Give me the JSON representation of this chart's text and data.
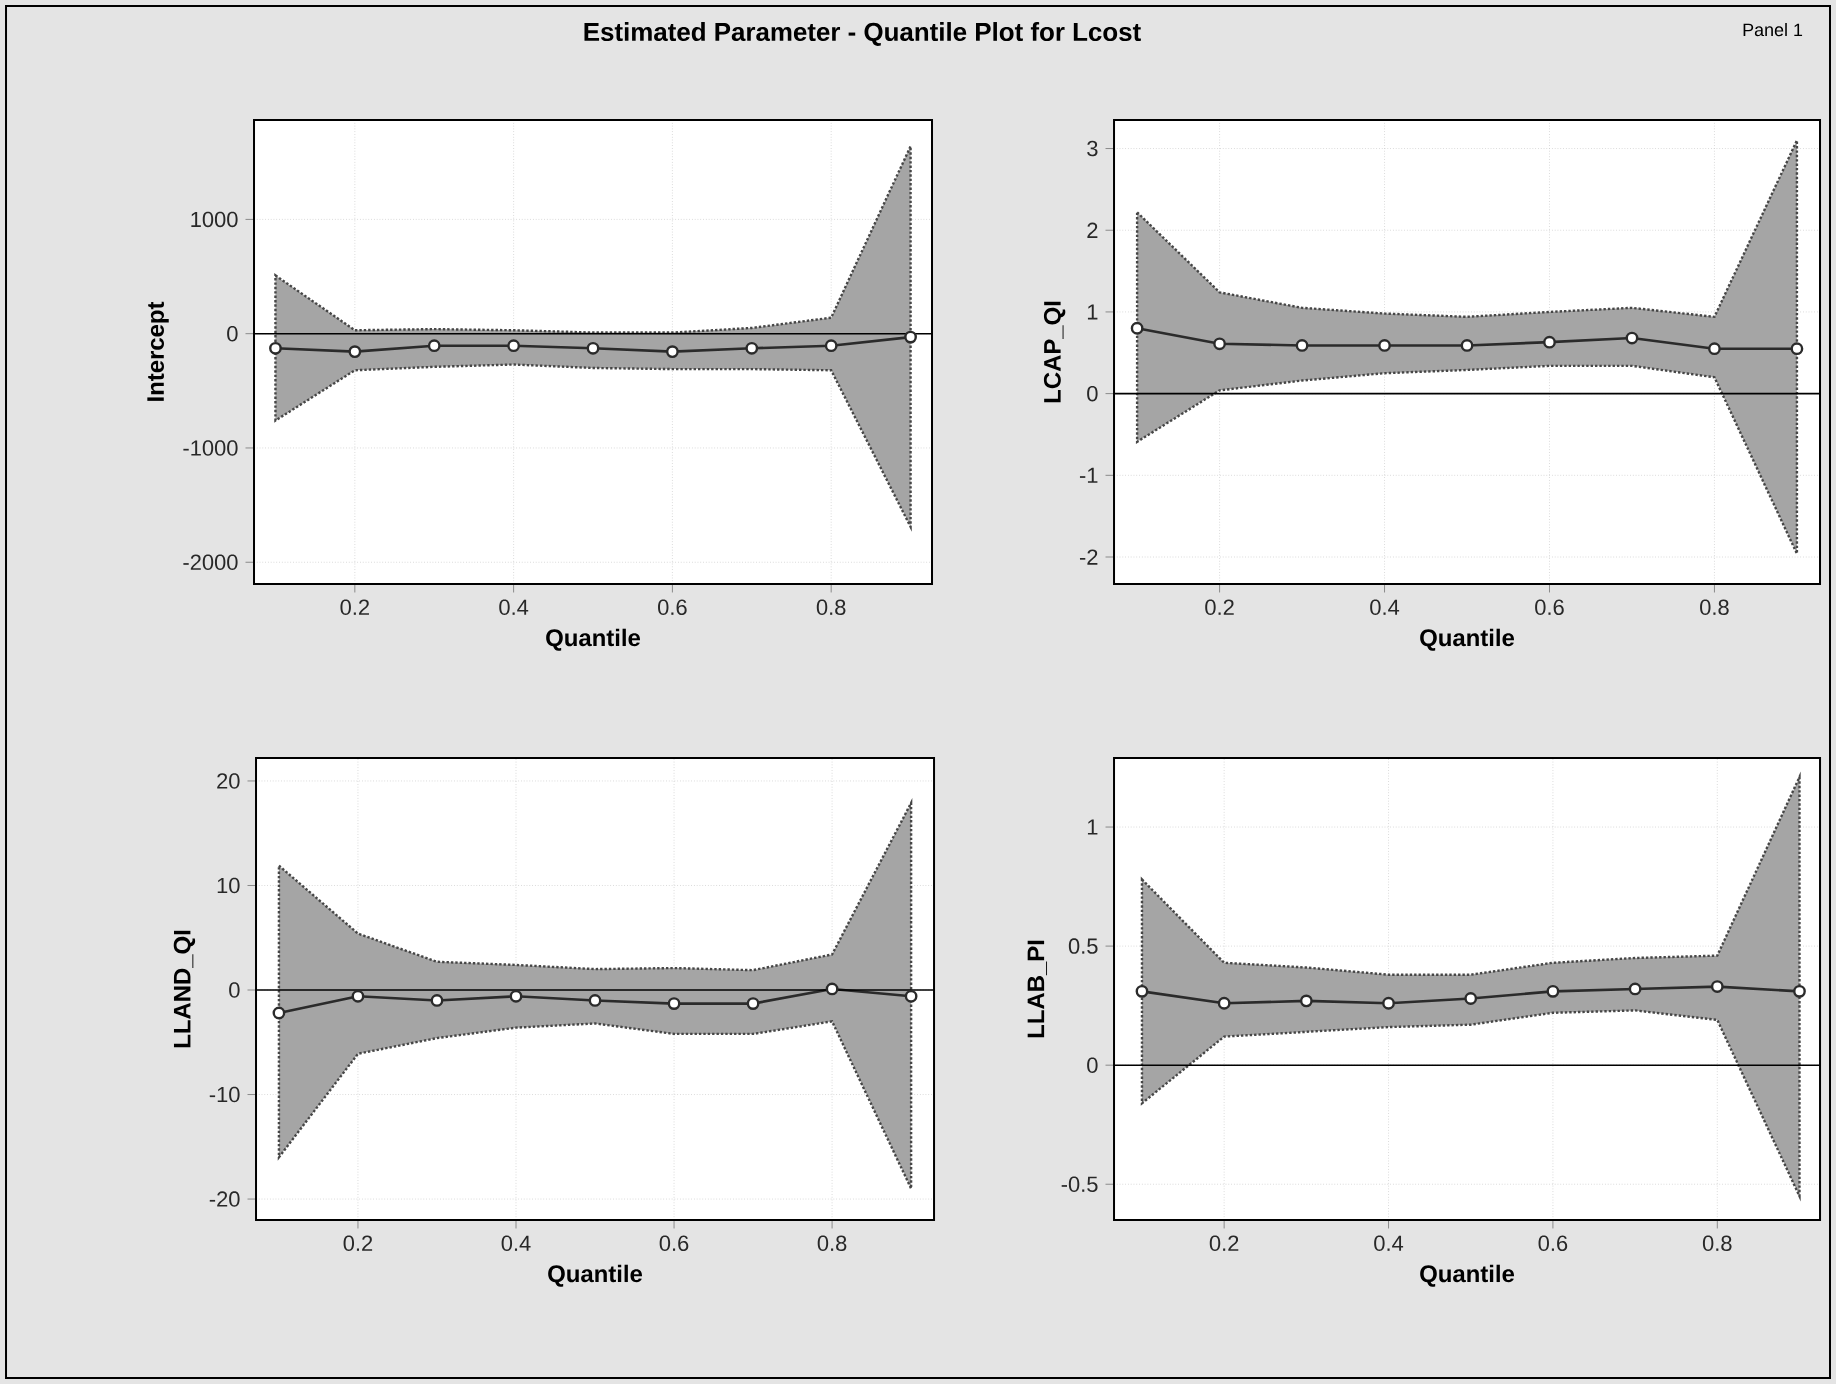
{
  "chart_data": [
    {
      "type": "line",
      "title": "Estimated Parameter - Quantile Plot for Lcost",
      "annotations": [
        "Panel 1"
      ],
      "xlabel": "Quantile",
      "ylabel": "Intercept",
      "xlim": [
        0.073,
        0.927
      ],
      "xticks": [
        0.2,
        0.4,
        0.6,
        0.8
      ],
      "ylim": [
        -2190,
        1870
      ],
      "yticks": [
        -2000,
        -1000,
        0,
        1000
      ],
      "grid": true,
      "marker": "circle",
      "ref_lines": [
        {
          "axis": "y",
          "value": 0
        }
      ],
      "series": [
        {
          "color": "#2b2b2b",
          "x": [
            0.1,
            0.2,
            0.3,
            0.4,
            0.5,
            0.6,
            0.7,
            0.8,
            0.9
          ],
          "values": [
            -128,
            -157,
            -105,
            -105,
            -128,
            -157,
            -128,
            -105,
            -30
          ],
          "lower": [
            -760,
            -320,
            -290,
            -270,
            -300,
            -310,
            -310,
            -320,
            -1690
          ],
          "upper": [
            510,
            30,
            40,
            30,
            10,
            10,
            50,
            140,
            1640
          ]
        }
      ]
    },
    {
      "type": "line",
      "xlabel": "Quantile",
      "ylabel": "LCAP_QI",
      "xlim": [
        0.072,
        0.928
      ],
      "xticks": [
        0.2,
        0.4,
        0.6,
        0.8
      ],
      "ylim": [
        -2.33,
        3.35
      ],
      "yticks": [
        -2,
        -1,
        0,
        1,
        2,
        3
      ],
      "grid": true,
      "marker": "circle",
      "ref_lines": [
        {
          "axis": "y",
          "value": 0
        }
      ],
      "series": [
        {
          "color": "#2b2b2b",
          "x": [
            0.1,
            0.2,
            0.3,
            0.4,
            0.5,
            0.6,
            0.7,
            0.8,
            0.9
          ],
          "values": [
            0.8,
            0.61,
            0.59,
            0.59,
            0.59,
            0.63,
            0.68,
            0.55,
            0.55
          ],
          "lower": [
            -0.59,
            0.04,
            0.16,
            0.25,
            0.29,
            0.34,
            0.34,
            0.2,
            -1.96
          ],
          "upper": [
            2.22,
            1.24,
            1.05,
            0.98,
            0.94,
            1.0,
            1.05,
            0.94,
            3.1
          ]
        }
      ]
    },
    {
      "type": "line",
      "xlabel": "Quantile",
      "ylabel": "LLAND_QI",
      "xlim": [
        0.071,
        0.929
      ],
      "xticks": [
        0.2,
        0.4,
        0.6,
        0.8
      ],
      "ylim": [
        -22,
        22.2
      ],
      "yticks": [
        -20,
        -10,
        0,
        10,
        20
      ],
      "grid": true,
      "marker": "circle",
      "ref_lines": [
        {
          "axis": "y",
          "value": 0
        }
      ],
      "series": [
        {
          "color": "#2b2b2b",
          "x": [
            0.1,
            0.2,
            0.3,
            0.4,
            0.5,
            0.6,
            0.7,
            0.8,
            0.9
          ],
          "values": [
            -2.2,
            -0.6,
            -1.0,
            -0.6,
            -1.0,
            -1.3,
            -1.3,
            0.1,
            -0.6
          ],
          "lower": [
            -16.0,
            -6.1,
            -4.6,
            -3.6,
            -3.2,
            -4.2,
            -4.2,
            -3.0,
            -19.0
          ],
          "upper": [
            11.9,
            5.4,
            2.7,
            2.4,
            2.0,
            2.1,
            1.9,
            3.4,
            17.9
          ]
        }
      ]
    },
    {
      "type": "line",
      "xlabel": "Quantile",
      "ylabel": "LLAB_PI",
      "xlim": [
        0.066,
        0.925
      ],
      "xticks": [
        0.2,
        0.4,
        0.6,
        0.8
      ],
      "ylim": [
        -0.65,
        1.29
      ],
      "yticks": [
        -0.5,
        0,
        0.5,
        1
      ],
      "grid": true,
      "marker": "circle",
      "ref_lines": [
        {
          "axis": "y",
          "value": 0
        }
      ],
      "series": [
        {
          "color": "#2b2b2b",
          "x": [
            0.1,
            0.2,
            0.3,
            0.4,
            0.5,
            0.6,
            0.7,
            0.8,
            0.9
          ],
          "values": [
            0.31,
            0.26,
            0.27,
            0.26,
            0.28,
            0.31,
            0.32,
            0.33,
            0.31
          ],
          "lower": [
            -0.16,
            0.12,
            0.14,
            0.16,
            0.17,
            0.22,
            0.23,
            0.19,
            -0.55
          ],
          "upper": [
            0.78,
            0.43,
            0.41,
            0.38,
            0.38,
            0.43,
            0.45,
            0.46,
            1.21
          ]
        }
      ]
    }
  ]
}
